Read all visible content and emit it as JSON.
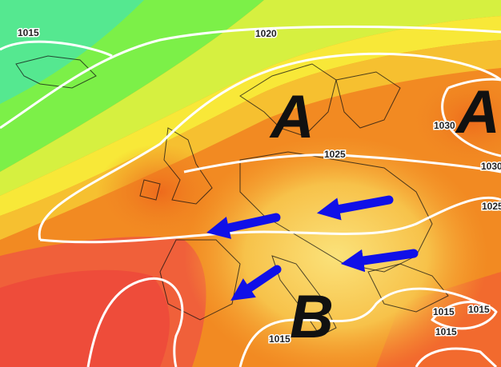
{
  "isobar_labels": [
    "1015",
    "1020",
    "1025",
    "1030",
    "1030",
    "1025",
    "1015",
    "1015",
    "1015",
    "1015"
  ],
  "pressure_centers": [
    "A",
    "A",
    "B"
  ]
}
